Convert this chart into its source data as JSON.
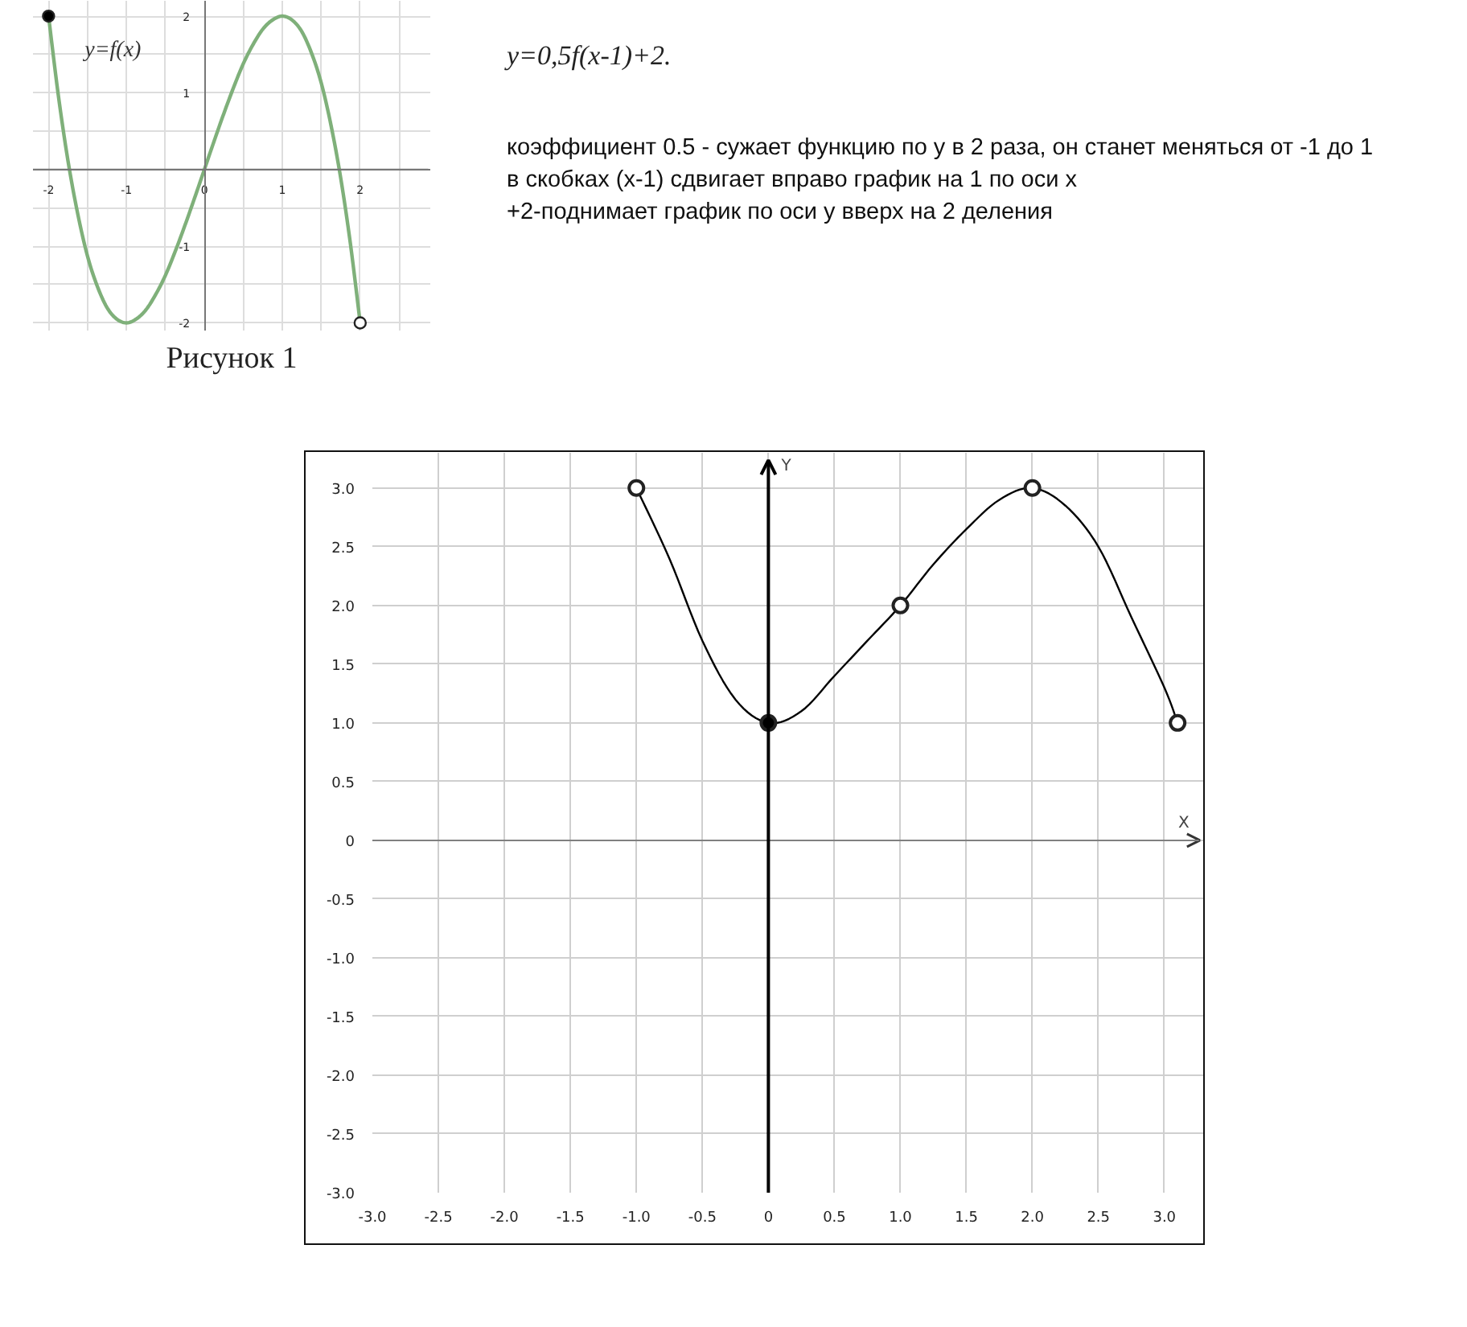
{
  "chart_data": [
    {
      "type": "line",
      "annotations": [
        "Рисунок 1"
      ],
      "xlim": [
        -2.2,
        2.9
      ],
      "ylim": [
        -2.1,
        2.2
      ],
      "grid": true,
      "xticks": [
        -2,
        {
          "value": -1.5,
          "label": null
        },
        -1,
        {
          "value": -0.5,
          "label": null
        },
        0,
        {
          "value": 0.5,
          "label": null
        },
        1,
        {
          "value": 1.5,
          "label": null
        },
        2,
        {
          "value": 2.5,
          "label": null
        }
      ],
      "yticks": [
        -2,
        {
          "value": -1.5,
          "label": null
        },
        -1,
        {
          "value": -0.5,
          "label": null
        },
        {
          "value": 0.5,
          "label": null
        },
        1,
        {
          "value": 1.5,
          "label": null
        },
        2
      ],
      "series": [
        {
          "name": "y=f(x)",
          "color": "#7fb07a",
          "x": [
            -2,
            -1.875,
            -1.75,
            -1.625,
            -1.5,
            -1.375,
            -1.25,
            -1.125,
            -1,
            -0.875,
            -0.75,
            -0.625,
            -0.5,
            -0.375,
            -0.25,
            -0.125,
            0,
            0.125,
            0.25,
            0.375,
            0.5,
            0.625,
            0.75,
            0.875,
            1,
            1.125,
            1.25,
            1.375,
            1.5,
            1.625,
            1.75,
            1.875,
            2
          ],
          "values": [
            2,
            0.97,
            0.11,
            -0.58,
            -1.13,
            -1.52,
            -1.8,
            -1.95,
            -2,
            -1.95,
            -1.83,
            -1.63,
            -1.38,
            -1.07,
            -0.73,
            -0.37,
            0,
            0.37,
            0.73,
            1.07,
            1.38,
            1.63,
            1.83,
            1.95,
            2,
            1.95,
            1.8,
            1.52,
            1.13,
            0.58,
            -0.11,
            -0.97,
            -2
          ]
        },
        {
          "type": "scatter",
          "marker": "circle",
          "color": "#000000",
          "x": [
            -2
          ],
          "values": [
            2
          ]
        },
        {
          "type": "scatter",
          "marker": "circle",
          "color": "#ffffff",
          "x": [
            2
          ],
          "values": [
            -2
          ]
        }
      ]
    },
    {
      "type": "line",
      "title": "y=0,5f(x-1)+2.",
      "annotations": [
        "коэффициент 0.5 - сужает функцию по у в 2 раза, он станет меняться от -1 до 1",
        "в скобках (х-1) сдвигает вправо график на 1 по оси х",
        "+2-поднимает график по оси у вверх на 2 деления"
      ],
      "xlabel": "X",
      "ylabel": "Y",
      "xlim": [
        -3,
        3.3
      ],
      "ylim": [
        -3,
        3.3
      ],
      "grid": true,
      "xticks": [
        {
          "value": -3,
          "label": "-3.0"
        },
        -2.5,
        {
          "value": -2,
          "label": "-2.0"
        },
        -1.5,
        {
          "value": -1,
          "label": "-1.0"
        },
        -0.5,
        0,
        0.5,
        {
          "value": 1,
          "label": "1.0"
        },
        1.5,
        {
          "value": 2,
          "label": "2.0"
        },
        2.5,
        {
          "value": 3,
          "label": "3.0"
        }
      ],
      "yticks": [
        {
          "value": -3,
          "label": "-3.0"
        },
        -2.5,
        {
          "value": -2,
          "label": "-2.0"
        },
        -1.5,
        {
          "value": -1,
          "label": "-1.0"
        },
        -0.5,
        0,
        0.5,
        {
          "value": 1,
          "label": "1.0"
        },
        1.5,
        {
          "value": 2,
          "label": "2.0"
        },
        2.5,
        {
          "value": 3,
          "label": "3.0"
        }
      ],
      "series": [
        {
          "color": "#000000",
          "x": [
            -1,
            -0.75,
            -0.5,
            -0.25,
            0,
            0.25,
            0.5,
            0.75,
            1,
            1.25,
            1.5,
            1.75,
            2,
            2.25,
            2.5,
            2.75,
            3,
            3.1
          ],
          "values": [
            3,
            2.4,
            1.7,
            1.2,
            1,
            1.1,
            1.4,
            1.7,
            2,
            2.35,
            2.65,
            2.9,
            3,
            2.85,
            2.5,
            1.9,
            1.3,
            1
          ]
        },
        {
          "type": "scatter",
          "marker": "circle",
          "color": "#000000",
          "x": [
            0
          ],
          "values": [
            1
          ]
        },
        {
          "type": "scatter",
          "marker": "circle",
          "color": "#ffffff",
          "x": [
            -1,
            1,
            2,
            3.1
          ],
          "values": [
            3,
            2,
            3,
            1
          ]
        }
      ]
    }
  ]
}
